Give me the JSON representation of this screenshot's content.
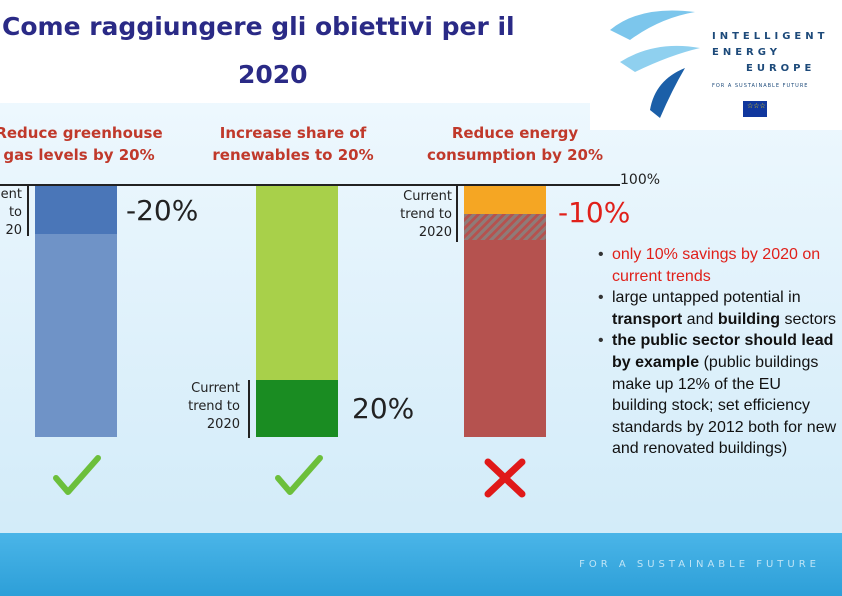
{
  "title": {
    "line1": "Come raggiungere gli obiettivi per il",
    "line2": "2020"
  },
  "logo": {
    "line1": "INTELLIGENT",
    "line2": "ENERGY",
    "line3": "EUROPE",
    "sub": "FOR A SUSTAINABLE FUTURE",
    "flag_icon": "eu-flag-icon",
    "colors": {
      "swoosh_light": "#7cc6ec",
      "swoosh_dark": "#1b5fa8"
    }
  },
  "footer": {
    "text": "FOR A SUSTAINABLE FUTURE"
  },
  "columns": [
    {
      "heading1": "Reduce greenhouse",
      "heading2": "gas levels by 20%",
      "trend1": "ent",
      "trend2": "to",
      "trend3": "20",
      "target_label": "-20%",
      "status_icon": "check-icon"
    },
    {
      "heading1": "Increase share of",
      "heading2": "renewables to 20%",
      "trend1": "Current",
      "trend2": "trend to",
      "trend3": "2020",
      "target_label": "20%",
      "status_icon": "check-icon"
    },
    {
      "heading1": "Reduce energy",
      "heading2": "consumption by 20%",
      "trend1": "Current",
      "trend2": "trend to",
      "trend3": "2020",
      "target_label": "-10%",
      "status_icon": "cross-icon"
    }
  ],
  "baseline_label": "100%",
  "bullets": [
    {
      "text": "only 10% savings by 2020 on current trends"
    },
    {
      "p1": "large untapped potential in ",
      "b1": "transport",
      "p2": " and ",
      "b2": "building",
      "p3": " sectors"
    },
    {
      "b1": "the public sector should lead by example",
      "p1": " (public buildings make up 12% of the EU building stock; set efficiency standards by 2012 both for new and renovated buildings)"
    }
  ],
  "colors": {
    "title": "#2a2a86",
    "heading": "#c0392b",
    "ghg_bar": "#6f93c7",
    "ghg_bar_top": "#4a76b8",
    "renew_bar": "#a8d04a",
    "renew_bar_bottom": "#1a8c22",
    "energy_bar": "#b5524f",
    "energy_bar_top": "#f5a623",
    "check": "#6cbf3b",
    "cross": "#e01919"
  }
}
